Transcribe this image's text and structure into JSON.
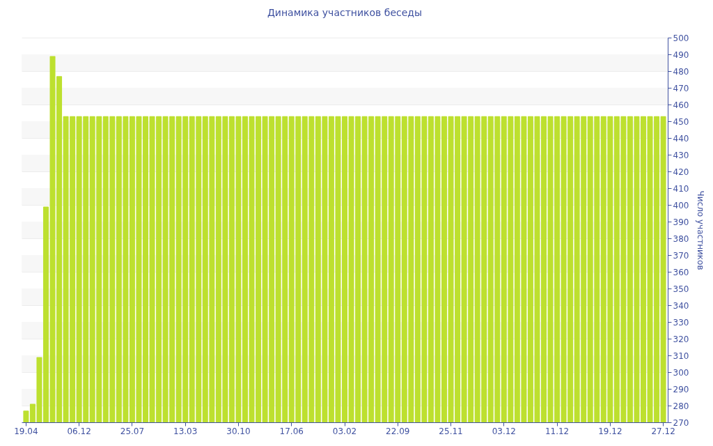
{
  "chart_data": {
    "type": "bar",
    "title": "Динамика участников беседы",
    "ylabel": "Число участников",
    "categories": [
      "19.04",
      null,
      null,
      null,
      null,
      null,
      null,
      null,
      "06.12",
      null,
      null,
      null,
      null,
      null,
      null,
      null,
      "25.07",
      null,
      null,
      null,
      null,
      null,
      null,
      null,
      "13.03",
      null,
      null,
      null,
      null,
      null,
      null,
      null,
      "30.10",
      null,
      null,
      null,
      null,
      null,
      null,
      null,
      "17.06",
      null,
      null,
      null,
      null,
      null,
      null,
      null,
      "03.02",
      null,
      null,
      null,
      null,
      null,
      null,
      null,
      "22.09",
      null,
      null,
      null,
      null,
      null,
      null,
      null,
      "25.11",
      null,
      null,
      null,
      null,
      null,
      null,
      null,
      "03.12",
      null,
      null,
      null,
      null,
      null,
      null,
      null,
      "11.12",
      null,
      null,
      null,
      null,
      null,
      null,
      null,
      "19.12",
      null,
      null,
      null,
      null,
      null,
      null,
      null,
      "27.12"
    ],
    "values": [
      277,
      281,
      309,
      399,
      489,
      477,
      453,
      453,
      453,
      453,
      453,
      453,
      453,
      453,
      453,
      453,
      453,
      453,
      453,
      453,
      453,
      453,
      453,
      453,
      453,
      453,
      453,
      453,
      453,
      453,
      453,
      453,
      453,
      453,
      453,
      453,
      453,
      453,
      453,
      453,
      453,
      453,
      453,
      453,
      453,
      453,
      453,
      453,
      453,
      453,
      453,
      453,
      453,
      453,
      453,
      453,
      453,
      453,
      453,
      453,
      453,
      453,
      453,
      453,
      453,
      453,
      453,
      453,
      453,
      453,
      453,
      453,
      453,
      453,
      453,
      453,
      453,
      453,
      453,
      453,
      453,
      453,
      453,
      453,
      453,
      453,
      453,
      453,
      453,
      453,
      453,
      453,
      453,
      453,
      453,
      453,
      453
    ],
    "color": "#bde02f",
    "ylim": [
      270,
      500
    ],
    "yticks": [
      270,
      280,
      290,
      300,
      310,
      320,
      330,
      340,
      350,
      360,
      370,
      380,
      390,
      400,
      410,
      420,
      430,
      440,
      450,
      460,
      470,
      480,
      490,
      500
    ],
    "grid": "y"
  }
}
